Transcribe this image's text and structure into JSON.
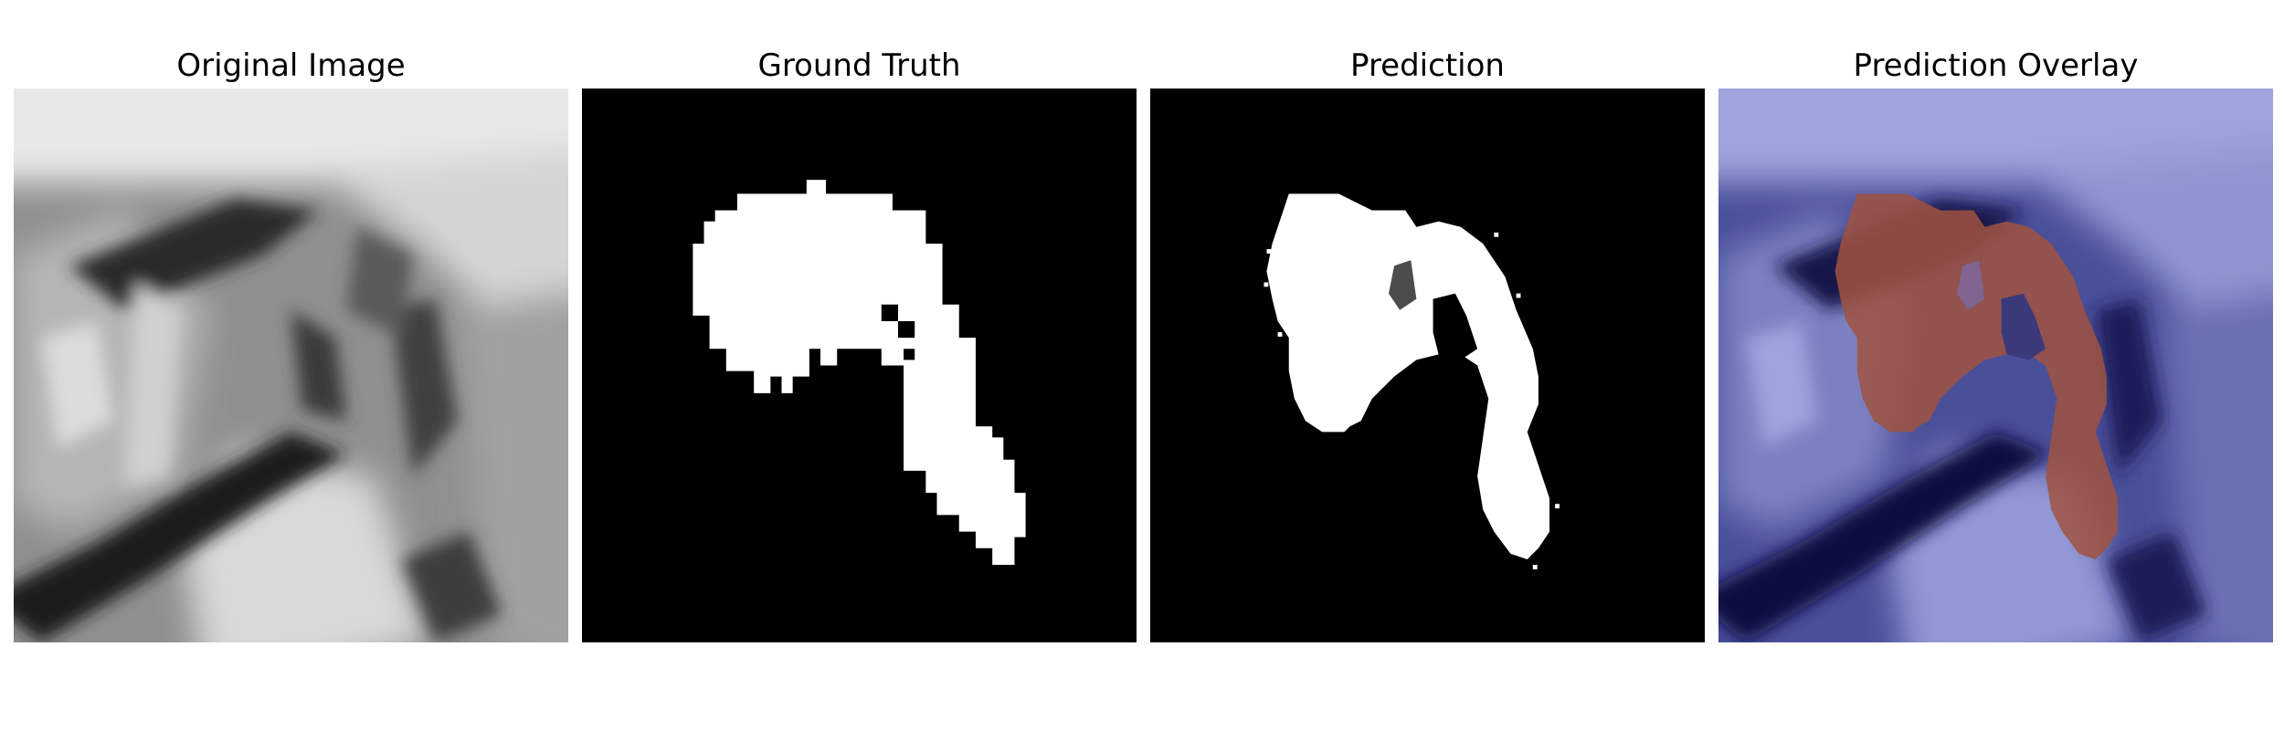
{
  "figure": {
    "panels": [
      {
        "title": "Original Image",
        "kind": "grayscale-mri-slice"
      },
      {
        "title": "Ground Truth",
        "kind": "binary-mask",
        "background": "#000000",
        "mask_color": "#ffffff"
      },
      {
        "title": "Prediction",
        "kind": "binary-mask",
        "background": "#000000",
        "mask_color": "#ffffff"
      },
      {
        "title": "Prediction Overlay",
        "kind": "overlay",
        "base_tint": "#8088cc",
        "dark_tint": "#0a0a50",
        "mask_tint": "#a0523f"
      }
    ]
  }
}
